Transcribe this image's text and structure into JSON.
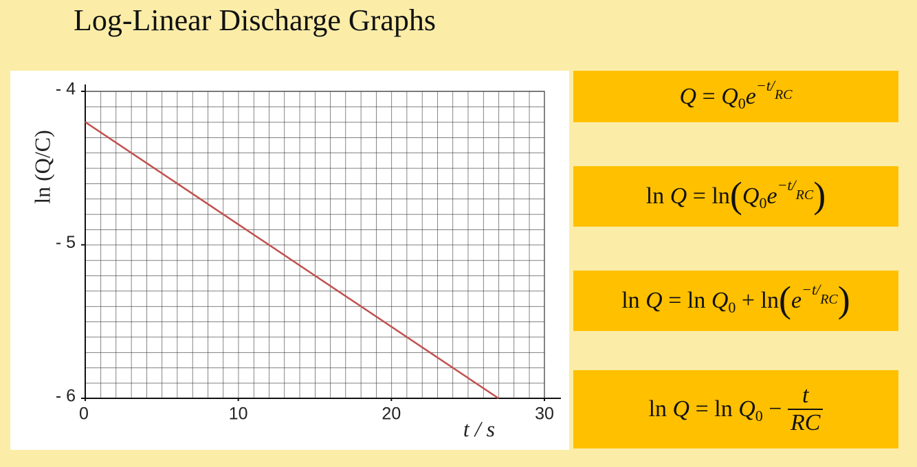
{
  "title": "Log-Linear Discharge Graphs",
  "chart_data": {
    "type": "line",
    "x_label": "t / s",
    "y_label": "ln (Q/C)",
    "x": [
      0,
      27
    ],
    "series": [
      {
        "name": null,
        "color": "#c0504d",
        "values": [
          -4.2,
          -6
        ]
      }
    ],
    "xlim": [
      0,
      30
    ],
    "xticks": [
      0,
      10,
      20,
      30
    ],
    "ylim": [
      -6,
      -4
    ],
    "yticks": [
      {
        "value": -6,
        "label": "- 6"
      },
      {
        "value": -5,
        "label": "- 5"
      },
      {
        "value": -4,
        "label": "- 4"
      }
    ],
    "grid": true
  },
  "equations": [
    [
      {
        "text": "Q",
        "style": "i"
      },
      {
        "text": " = ",
        "style": "r"
      },
      {
        "text": "Q",
        "style": "i"
      },
      {
        "text": "0",
        "style": "sub"
      },
      {
        "text": "e",
        "style": "i"
      },
      {
        "text": "−t",
        "style": "sup"
      },
      {
        "text": "/",
        "style": "sup"
      },
      {
        "text": "RC",
        "style": "small-i"
      }
    ],
    [
      {
        "text": "ln ",
        "style": "r"
      },
      {
        "text": "Q",
        "style": "i"
      },
      {
        "text": " = ln",
        "style": "r"
      },
      {
        "text": "(",
        "style": "big"
      },
      {
        "text": "Q",
        "style": "i"
      },
      {
        "text": "0",
        "style": "sub"
      },
      {
        "text": "e",
        "style": "i"
      },
      {
        "text": "−t",
        "style": "sup"
      },
      {
        "text": "/",
        "style": "sup"
      },
      {
        "text": "RC",
        "style": "small-i"
      },
      {
        "text": ")",
        "style": "big"
      }
    ],
    [
      {
        "text": "ln ",
        "style": "r"
      },
      {
        "text": "Q",
        "style": "i"
      },
      {
        "text": " = ln ",
        "style": "r"
      },
      {
        "text": "Q",
        "style": "i"
      },
      {
        "text": "0",
        "style": "sub"
      },
      {
        "text": " + ln",
        "style": "r"
      },
      {
        "text": "(",
        "style": "big"
      },
      {
        "text": "e",
        "style": "i"
      },
      {
        "text": "−t",
        "style": "sup"
      },
      {
        "text": "/",
        "style": "sup"
      },
      {
        "text": "RC",
        "style": "small-i"
      },
      {
        "text": ")",
        "style": "big"
      }
    ],
    [
      {
        "text": "ln ",
        "style": "r"
      },
      {
        "text": "Q",
        "style": "i"
      },
      {
        "text": " = ln ",
        "style": "r"
      },
      {
        "text": "Q",
        "style": "i"
      },
      {
        "text": "0",
        "style": "sub"
      },
      {
        "text": " − ",
        "style": "r"
      },
      {
        "num": "t",
        "den": "RC",
        "style": "frac"
      }
    ]
  ]
}
